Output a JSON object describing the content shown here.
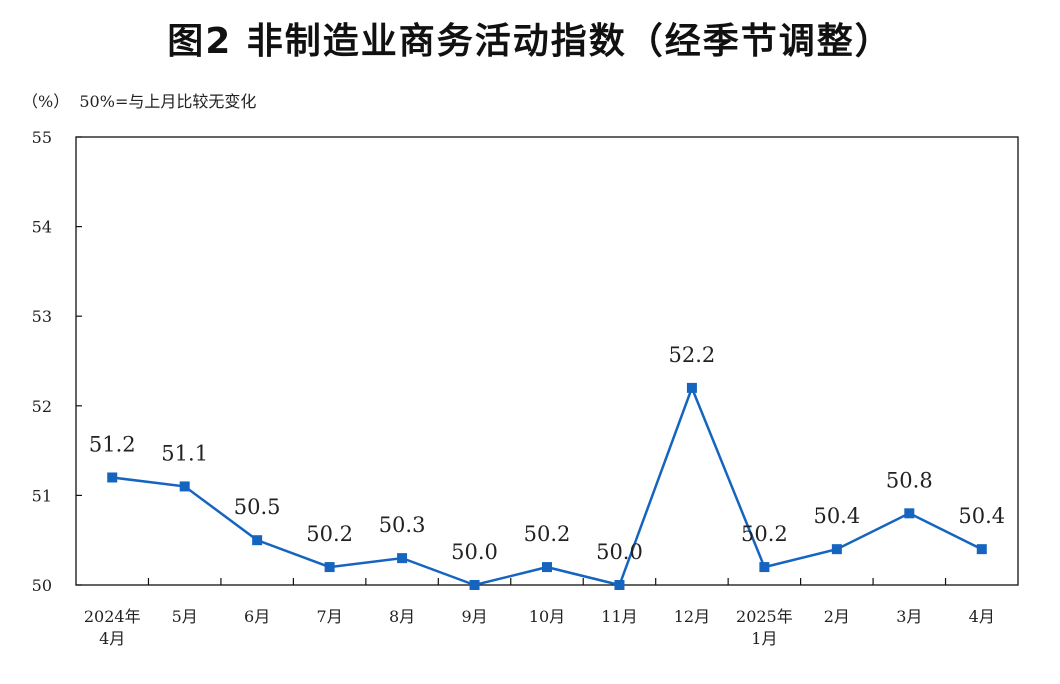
{
  "title": "图2  非制造业商务活动指数（经季节调整）",
  "unit_note": "（%）  50%=与上月比较无变化",
  "colors": {
    "line": "#1565C0",
    "axis": "#111111"
  },
  "chart_data": {
    "type": "line",
    "title": "图2  非制造业商务活动指数（经季节调整）",
    "ylabel": "（%）",
    "ylim": [
      50,
      55
    ],
    "yticks": [
      50,
      51,
      52,
      53,
      54,
      55
    ],
    "grid": false,
    "categories": [
      [
        "2024年",
        "4月"
      ],
      [
        "5月"
      ],
      [
        "6月"
      ],
      [
        "7月"
      ],
      [
        "8月"
      ],
      [
        "9月"
      ],
      [
        "10月"
      ],
      [
        "11月"
      ],
      [
        "12月"
      ],
      [
        "2025年",
        "1月"
      ],
      [
        "2月"
      ],
      [
        "3月"
      ],
      [
        "4月"
      ]
    ],
    "values": [
      51.2,
      51.1,
      50.5,
      50.2,
      50.3,
      50.0,
      50.2,
      50.0,
      52.2,
      50.2,
      50.4,
      50.8,
      50.4
    ],
    "data_labels": [
      "51.2",
      "51.1",
      "50.5",
      "50.2",
      "50.3",
      "50.0",
      "50.2",
      "50.0",
      "52.2",
      "50.2",
      "50.4",
      "50.8",
      "50.4"
    ]
  }
}
